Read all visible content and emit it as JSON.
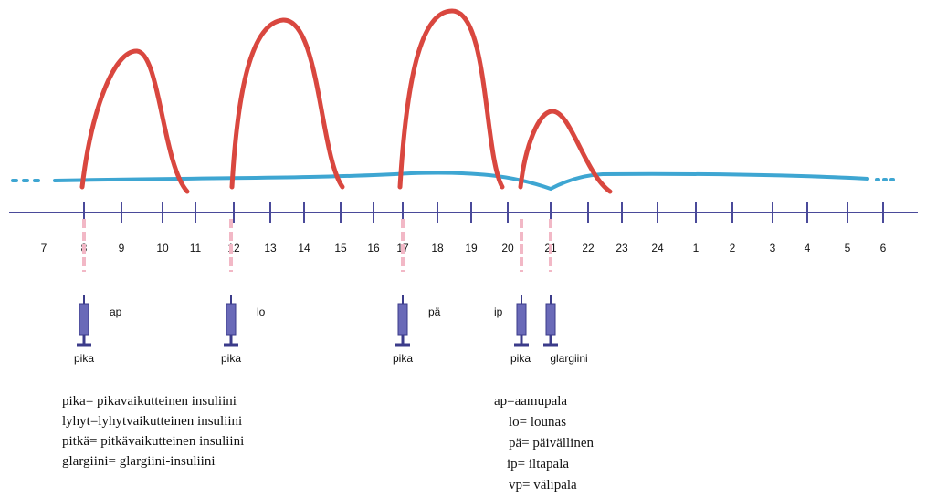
{
  "hours": [
    "7",
    "8",
    "9",
    "10",
    "11",
    "12",
    "13",
    "14",
    "15",
    "16",
    "17",
    "18",
    "19",
    "20",
    "21",
    "22",
    "23",
    "24",
    "1",
    "2",
    "3",
    "4",
    "5",
    "6"
  ],
  "injections": [
    {
      "insulin": "pika",
      "meal": "ap"
    },
    {
      "insulin": "pika",
      "meal": "lo"
    },
    {
      "insulin": "pika",
      "meal": "pä"
    },
    {
      "insulin": "pika",
      "meal": "ip"
    },
    {
      "insulin": "glargiini"
    }
  ],
  "legend_insulins": [
    "pika= pikavaikutteinen insuliini",
    "lyhyt=lyhytvaikutteinen insuliini",
    "pitkä= pitkävaikutteinen insuliini",
    "glargiini= glargiini-insuliini"
  ],
  "legend_meals": [
    "ap=aamupala",
    "lo= lounas",
    "pä= päivällinen",
    "ip= iltapala",
    "vp= välipala"
  ]
}
